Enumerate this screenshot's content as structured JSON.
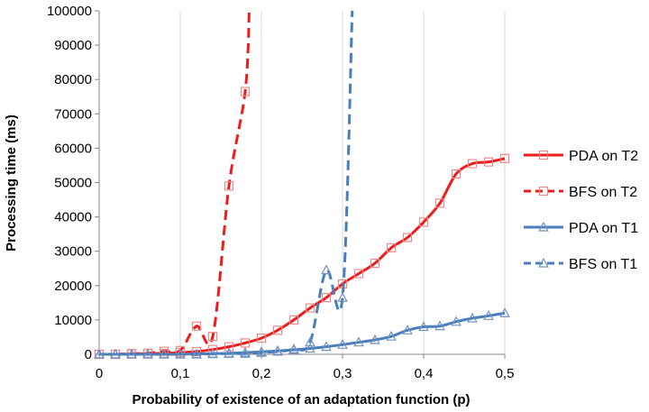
{
  "chart_data": {
    "type": "line",
    "title": "",
    "xlabel": "Probability of existence of an adaptation function (p)",
    "ylabel": "Processing  time  (ms)",
    "xlim": [
      0,
      0.5
    ],
    "ylim": [
      0,
      100000
    ],
    "x_ticks": [
      "0",
      "0,1",
      "0,2",
      "0,3",
      "0,4",
      "0,5"
    ],
    "y_ticks": [
      "0",
      "10000",
      "20000",
      "30000",
      "40000",
      "50000",
      "60000",
      "70000",
      "80000",
      "90000",
      "100000"
    ],
    "grid": "vertical",
    "legend_position": "right",
    "colors": {
      "red": "#ee1c1c",
      "red_marker": "#f08a8a",
      "blue": "#4a7ebb",
      "blue_marker": "#6f93c4",
      "grid": "#d9d9d9",
      "axis": "#868686"
    },
    "series": [
      {
        "name": "PDA on T2",
        "color": "#ee1c1c",
        "dash": false,
        "marker": "square",
        "x": [
          0,
          0.02,
          0.04,
          0.06,
          0.08,
          0.1,
          0.12,
          0.14,
          0.16,
          0.18,
          0.2,
          0.22,
          0.24,
          0.26,
          0.28,
          0.3,
          0.32,
          0.34,
          0.36,
          0.38,
          0.4,
          0.42,
          0.44,
          0.46,
          0.48,
          0.5
        ],
        "y": [
          0,
          0,
          100,
          200,
          300,
          500,
          800,
          1400,
          2200,
          3300,
          4700,
          7000,
          10000,
          13500,
          16500,
          20500,
          23500,
          26500,
          31000,
          34000,
          38500,
          44000,
          52500,
          55500,
          56000,
          57000
        ]
      },
      {
        "name": "BFS on T2",
        "color": "#ee1c1c",
        "dash": true,
        "marker": "square",
        "x": [
          0,
          0.02,
          0.04,
          0.06,
          0.08,
          0.1,
          0.12,
          0.14,
          0.16,
          0.18,
          0.185
        ],
        "y": [
          0,
          0,
          200,
          300,
          900,
          1100,
          8200,
          5200,
          49000,
          76500,
          100000
        ]
      },
      {
        "name": "PDA on T1",
        "color": "#4a7ebb",
        "dash": false,
        "marker": "triangle",
        "x": [
          0,
          0.02,
          0.04,
          0.06,
          0.08,
          0.1,
          0.12,
          0.14,
          0.16,
          0.18,
          0.2,
          0.22,
          0.24,
          0.26,
          0.28,
          0.3,
          0.32,
          0.34,
          0.36,
          0.38,
          0.4,
          0.42,
          0.44,
          0.46,
          0.48,
          0.5
        ],
        "y": [
          0,
          0,
          0,
          0,
          0,
          0,
          100,
          200,
          300,
          500,
          700,
          1000,
          1300,
          1700,
          2200,
          2800,
          3500,
          4200,
          5200,
          7000,
          8000,
          8200,
          9500,
          10500,
          11200,
          12000
        ]
      },
      {
        "name": "BFS on T1",
        "color": "#4a7ebb",
        "dash": true,
        "marker": "triangle",
        "x": [
          0,
          0.02,
          0.04,
          0.06,
          0.08,
          0.1,
          0.12,
          0.14,
          0.16,
          0.18,
          0.2,
          0.22,
          0.24,
          0.26,
          0.28,
          0.3,
          0.312
        ],
        "y": [
          0,
          0,
          0,
          0,
          0,
          0,
          0,
          100,
          200,
          200,
          500,
          800,
          1500,
          3500,
          24500,
          16500,
          100000
        ]
      }
    ]
  }
}
